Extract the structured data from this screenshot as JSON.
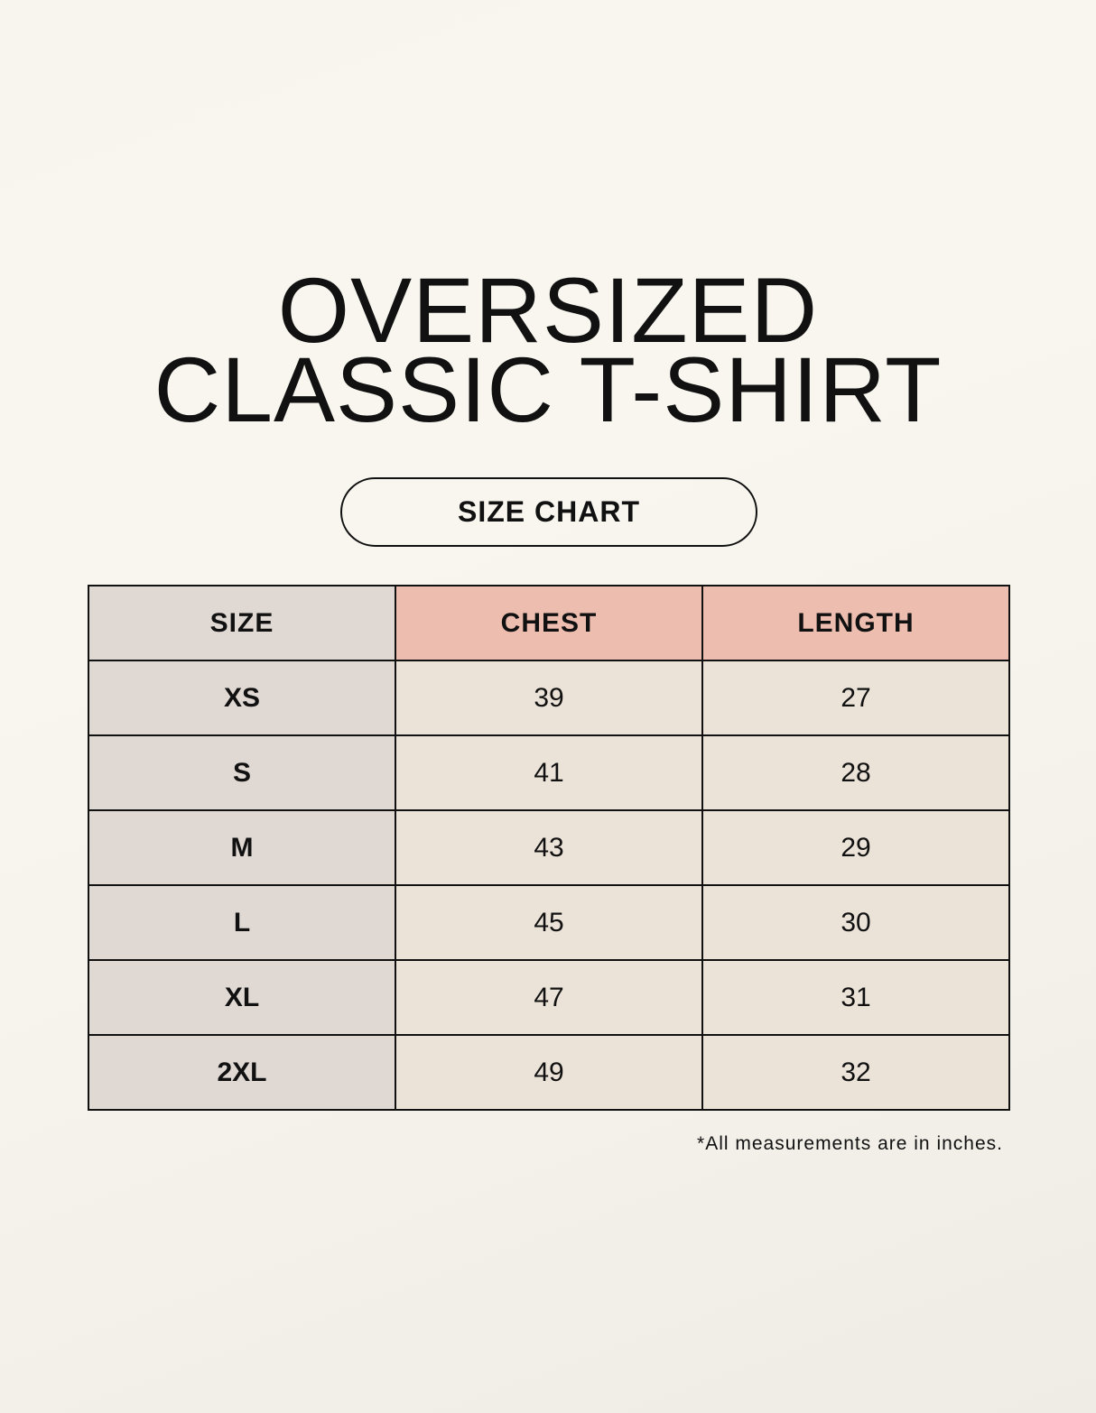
{
  "title_line1": "OVERSIZED",
  "title_line2": "CLASSIC T-SHIRT",
  "badge": "SIZE CHART",
  "colors": {
    "size_column": "#e0d8d3",
    "header_accent": "#edbdaf",
    "value_cells": "#ebe2d8"
  },
  "table": {
    "headers": [
      "SIZE",
      "CHEST",
      "LENGTH"
    ],
    "rows": [
      [
        "XS",
        "39",
        "27"
      ],
      [
        "S",
        "41",
        "28"
      ],
      [
        "M",
        "43",
        "29"
      ],
      [
        "L",
        "45",
        "30"
      ],
      [
        "XL",
        "47",
        "31"
      ],
      [
        "2XL",
        "49",
        "32"
      ]
    ]
  },
  "note": "*All measurements are in inches."
}
